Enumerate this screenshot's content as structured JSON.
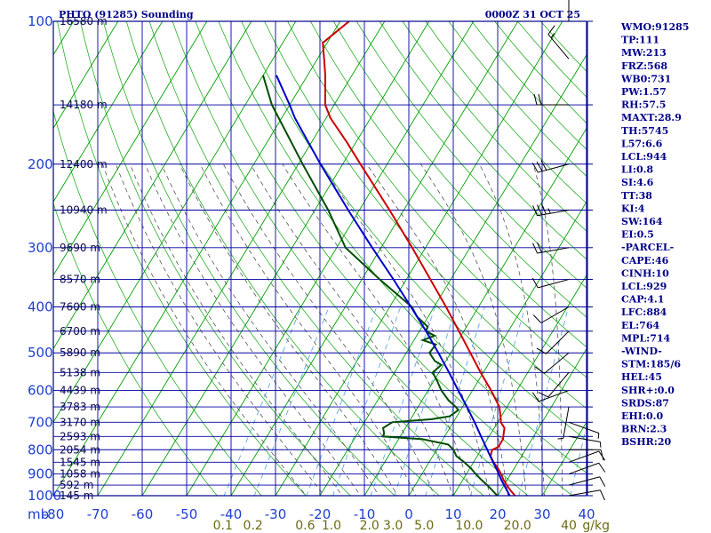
{
  "header": {
    "station": "PHTO (91285) Sounding",
    "time": "0000Z 31 OCT 25"
  },
  "indices": [
    "WMO:91285",
    "TP:111",
    "MW:213",
    "FRZ:568",
    "WB0:731",
    "PW:1.57",
    "RH:57.5",
    "MAXT:28.9",
    "TH:5745",
    "L57:6.6",
    "LCL:944",
    "LI:0.8",
    "SI:4.6",
    "TT:38",
    "KI:4",
    "SW:164",
    "EI:0.5",
    "-PARCEL-",
    "CAPE:46",
    "CINH:10",
    "LCL:929",
    "CAP:4.1",
    "LFC:884",
    "EL:764",
    "MPL:714",
    "-WIND-",
    "STM:185/6",
    "HEL:45",
    "SHR+:0.0",
    "SRDS:87",
    "EHI:0.0",
    "BRN:2.3",
    "BSHR:20"
  ],
  "colors": {
    "frame": "#00008b",
    "isobar": "#0000a0",
    "dry_adiabat": "#00a000",
    "moist_adiabat": "#555555",
    "mixing_ratio": "#4aa0e8",
    "temperature": "#cc0000",
    "dewpoint": "#004d00",
    "parcel": "#0000cc",
    "wind": "#000000"
  },
  "chart_data": {
    "type": "line",
    "subtype": "skew-t log-p sounding",
    "x_axis": {
      "unit_label": "mb",
      "ticks": [
        "-80",
        "-70",
        "-60",
        "-50",
        "-40",
        "-30",
        "-20",
        "-10",
        "0",
        "10",
        "20",
        "30",
        "40"
      ],
      "range": [
        -80,
        40
      ]
    },
    "y_axis": {
      "scale": "log",
      "range": [
        1000,
        100
      ],
      "ticks": [
        "100",
        "200",
        "300",
        "400",
        "500",
        "600",
        "700",
        "800",
        "900",
        "1000"
      ]
    },
    "height_labels": [
      {
        "p": 100,
        "label": "16580 m"
      },
      {
        "p": 150,
        "label": "14180 m"
      },
      {
        "p": 200,
        "label": "12400 m"
      },
      {
        "p": 250,
        "label": "10940 m"
      },
      {
        "p": 300,
        "label": "9690 m"
      },
      {
        "p": 350,
        "label": "8570 m"
      },
      {
        "p": 400,
        "label": "7600 m"
      },
      {
        "p": 450,
        "label": "6700 m"
      },
      {
        "p": 500,
        "label": "5890 m"
      },
      {
        "p": 550,
        "label": "5138 m"
      },
      {
        "p": 600,
        "label": "4439 m"
      },
      {
        "p": 650,
        "label": "3783 m"
      },
      {
        "p": 700,
        "label": "3170 m"
      },
      {
        "p": 750,
        "label": "2593 m"
      },
      {
        "p": 800,
        "label": "2054 m"
      },
      {
        "p": 850,
        "label": "1545 m"
      },
      {
        "p": 900,
        "label": "1058 m"
      },
      {
        "p": 950,
        "label": "592 m"
      },
      {
        "p": 1000,
        "label": "145 m"
      }
    ],
    "mixing_ratio_labels": [
      {
        "w": 0.1,
        "label": "0.1"
      },
      {
        "w": 0.2,
        "label": "0.2"
      },
      {
        "w": 0.6,
        "label": "0.6"
      },
      {
        "w": 1.0,
        "label": "1.0"
      },
      {
        "w": 2.0,
        "label": "2.0"
      },
      {
        "w": 3.0,
        "label": "3.0"
      },
      {
        "w": 5.0,
        "label": "5.0"
      },
      {
        "w": 10.0,
        "label": "10.0"
      },
      {
        "w": 20.0,
        "label": "20.0"
      },
      {
        "w": 40.0,
        "label": "40"
      }
    ],
    "mixing_ratio_unit": "g/kg",
    "series": [
      {
        "key": "temperature",
        "points": [
          [
            1010,
            24.8
          ],
          [
            1000,
            23.9
          ],
          [
            975,
            22.2
          ],
          [
            950,
            20.6
          ],
          [
            925,
            19.1
          ],
          [
            900,
            17.8
          ],
          [
            875,
            16.3
          ],
          [
            850,
            14.5
          ],
          [
            825,
            13.0
          ],
          [
            800,
            12.5
          ],
          [
            790,
            13.5
          ],
          [
            760,
            13.5
          ],
          [
            740,
            12.9
          ],
          [
            720,
            12.3
          ],
          [
            700,
            10.7
          ],
          [
            690,
            10.3
          ],
          [
            650,
            8.3
          ],
          [
            600,
            4.2
          ],
          [
            550,
            -0.6
          ],
          [
            500,
            -5.6
          ],
          [
            450,
            -11.1
          ],
          [
            400,
            -17.3
          ],
          [
            350,
            -24.6
          ],
          [
            300,
            -33.0
          ],
          [
            250,
            -43.2
          ],
          [
            200,
            -56.0
          ],
          [
            180,
            -62.0
          ],
          [
            160,
            -69.0
          ],
          [
            150,
            -72.0
          ],
          [
            130,
            -76.0
          ],
          [
            120,
            -78.5
          ],
          [
            111,
            -81.0
          ],
          [
            100,
            -78.0
          ]
        ]
      },
      {
        "key": "dewpoint",
        "points": [
          [
            1010,
            21.8
          ],
          [
            1000,
            19.9
          ],
          [
            975,
            18.1
          ],
          [
            950,
            16.2
          ],
          [
            925,
            14.1
          ],
          [
            900,
            12.1
          ],
          [
            875,
            10.2
          ],
          [
            850,
            7.9
          ],
          [
            825,
            5.3
          ],
          [
            800,
            3.8
          ],
          [
            780,
            1.9
          ],
          [
            760,
            -4.6
          ],
          [
            750,
            -13.9
          ],
          [
            740,
            -14.0
          ],
          [
            720,
            -15.0
          ],
          [
            700,
            -13.7
          ],
          [
            690,
            -5.2
          ],
          [
            680,
            -1.6
          ],
          [
            660,
            -0.5
          ],
          [
            650,
            -1.5
          ],
          [
            630,
            -4.0
          ],
          [
            600,
            -7.0
          ],
          [
            570,
            -9.5
          ],
          [
            550,
            -11.4
          ],
          [
            530,
            -10.5
          ],
          [
            520,
            -12.5
          ],
          [
            500,
            -14.8
          ],
          [
            480,
            -14.5
          ],
          [
            470,
            -18.0
          ],
          [
            460,
            -16.0
          ],
          [
            450,
            -18.5
          ],
          [
            440,
            -18.8
          ],
          [
            420,
            -22.4
          ],
          [
            400,
            -25.0
          ],
          [
            350,
            -36.0
          ],
          [
            300,
            -48.0
          ],
          [
            250,
            -57.0
          ],
          [
            200,
            -69.0
          ],
          [
            150,
            -84.0
          ],
          [
            130,
            -90.0
          ]
        ]
      },
      {
        "key": "parcel",
        "points": [
          [
            1010,
            23.7
          ],
          [
            1000,
            22.7
          ],
          [
            975,
            21.4
          ],
          [
            950,
            20.0
          ],
          [
            925,
            18.6
          ],
          [
            900,
            17.3
          ],
          [
            875,
            15.9
          ],
          [
            850,
            14.4
          ],
          [
            800,
            11.4
          ],
          [
            750,
            8.2
          ],
          [
            700,
            4.8
          ],
          [
            650,
            1.0
          ],
          [
            600,
            -3.2
          ],
          [
            550,
            -7.7
          ],
          [
            500,
            -12.8
          ],
          [
            450,
            -18.5
          ],
          [
            400,
            -25.2
          ],
          [
            350,
            -32.9
          ],
          [
            300,
            -42.0
          ],
          [
            250,
            -52.5
          ],
          [
            200,
            -65.0
          ],
          [
            160,
            -77.0
          ],
          [
            150,
            -80.0
          ],
          [
            130,
            -87.0
          ]
        ]
      }
    ],
    "wind_barbs": [
      {
        "p": 1000,
        "dir": 80,
        "spd": 10
      },
      {
        "p": 950,
        "dir": 75,
        "spd": 10
      },
      {
        "p": 900,
        "dir": 70,
        "spd": 10
      },
      {
        "p": 850,
        "dir": 70,
        "spd": 10
      },
      {
        "p": 800,
        "dir": 90,
        "spd": 10
      },
      {
        "p": 750,
        "dir": 100,
        "spd": 5
      },
      {
        "p": 700,
        "dir": 110,
        "spd": 5
      },
      {
        "p": 650,
        "dir": 190,
        "spd": 5
      },
      {
        "p": 600,
        "dir": 250,
        "spd": 10
      },
      {
        "p": 550,
        "dir": 220,
        "spd": 10
      },
      {
        "p": 500,
        "dir": 230,
        "spd": 10
      },
      {
        "p": 450,
        "dir": 225,
        "spd": 10
      },
      {
        "p": 400,
        "dir": 240,
        "spd": 10
      },
      {
        "p": 350,
        "dir": 255,
        "spd": 10
      },
      {
        "p": 300,
        "dir": 260,
        "spd": 20
      },
      {
        "p": 250,
        "dir": 260,
        "spd": 35
      },
      {
        "p": 200,
        "dir": 255,
        "spd": 30
      },
      {
        "p": 150,
        "dir": 270,
        "spd": 20
      },
      {
        "p": 120,
        "dir": 320,
        "spd": 15
      },
      {
        "p": 100,
        "dir": 0,
        "spd": 5
      }
    ]
  }
}
